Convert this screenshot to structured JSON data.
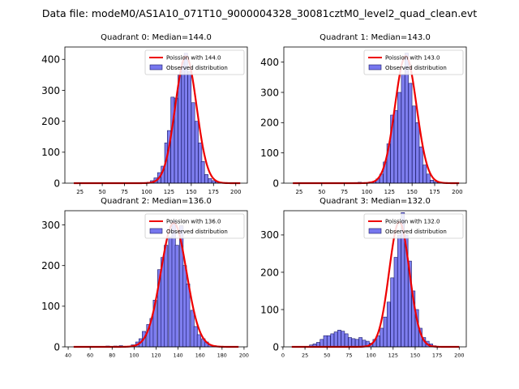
{
  "figure": {
    "suptitle": "Data file: modeM0/AS1A10_071T10_9000004328_30081cztM0_level2_quad_clean.evt"
  },
  "legend": {
    "poisson_color": "#ee0000",
    "hist_fill": "#7777ee",
    "hist_edge": "#1a1a66"
  },
  "chart_data": [
    {
      "type": "bar",
      "title": "Quadrant 0: Median=144.0",
      "legend_poisson": "Poission with 144.0",
      "legend_observed": "Observed distribution",
      "xlabel": "",
      "ylabel": "",
      "xlim": [
        8,
        213
      ],
      "ylim": [
        0,
        440
      ],
      "xticks": [
        25,
        50,
        75,
        100,
        125,
        150,
        175,
        200
      ],
      "yticks": [
        0,
        100,
        200,
        300,
        400
      ],
      "bin_width": 3.8,
      "poisson_mean": 144.0,
      "poisson_peak": 410,
      "curve_x": [
        18,
        205
      ],
      "bins_x": [
        90,
        95,
        99,
        102,
        106,
        110,
        114,
        118,
        122,
        125,
        129,
        133,
        137,
        141,
        144,
        148,
        152,
        156,
        160,
        163,
        167,
        171,
        175,
        179,
        182,
        186
      ],
      "bins_y": [
        1,
        2,
        1,
        3,
        8,
        17,
        34,
        55,
        130,
        170,
        278,
        275,
        350,
        390,
        420,
        360,
        260,
        200,
        130,
        70,
        28,
        15,
        8,
        4,
        2,
        1
      ]
    },
    {
      "type": "bar",
      "title": "Quadrant 1: Median=143.0",
      "legend_poisson": "Poission with 143.0",
      "legend_observed": "Observed distribution",
      "xlabel": "",
      "ylabel": "",
      "xlim": [
        8,
        210
      ],
      "ylim": [
        0,
        450
      ],
      "xticks": [
        25,
        50,
        75,
        100,
        125,
        150,
        175,
        200
      ],
      "yticks": [
        0,
        100,
        200,
        300,
        400
      ],
      "bin_width": 3.8,
      "poisson_mean": 143.0,
      "poisson_peak": 420,
      "curve_x": [
        18,
        202
      ],
      "bins_x": [
        88,
        92,
        96,
        100,
        104,
        108,
        112,
        116,
        120,
        124,
        128,
        132,
        136,
        140,
        144,
        148,
        152,
        156,
        160,
        164,
        168,
        172,
        176,
        180
      ],
      "bins_y": [
        2,
        3,
        2,
        1,
        4,
        6,
        14,
        30,
        70,
        130,
        225,
        240,
        300,
        360,
        430,
        330,
        255,
        200,
        120,
        60,
        30,
        10,
        5,
        2
      ]
    },
    {
      "type": "bar",
      "title": "Quadrant 2: Median=136.0",
      "legend_poisson": "Poission with 136.0",
      "legend_observed": "Observed distribution",
      "xlabel": "",
      "ylabel": "",
      "xlim": [
        37,
        203
      ],
      "ylim": [
        0,
        335
      ],
      "xticks": [
        40,
        60,
        80,
        100,
        120,
        140,
        160,
        180,
        200
      ],
      "yticks": [
        0,
        100,
        200,
        300
      ],
      "bin_width": 3.3,
      "poisson_mean": 136.0,
      "poisson_peak": 305,
      "curve_x": [
        45,
        195
      ],
      "bins_x": [
        76,
        83,
        88,
        94,
        99,
        103,
        106,
        109,
        113,
        116,
        119,
        123,
        126,
        129,
        133,
        136,
        139,
        143,
        146,
        149,
        153,
        156,
        159,
        163,
        166,
        169,
        173
      ],
      "bins_y": [
        2,
        2,
        3,
        1,
        5,
        12,
        20,
        38,
        55,
        70,
        115,
        190,
        220,
        250,
        270,
        310,
        250,
        298,
        200,
        155,
        90,
        50,
        30,
        20,
        12,
        5,
        3
      ]
    },
    {
      "type": "bar",
      "title": "Quadrant 3: Median=132.0",
      "legend_poisson": "Poission with 132.0",
      "legend_observed": "Observed distribution",
      "xlabel": "",
      "ylabel": "",
      "xlim": [
        1,
        208
      ],
      "ylim": [
        0,
        365
      ],
      "xticks": [
        0,
        25,
        50,
        75,
        100,
        125,
        150,
        175,
        200
      ],
      "yticks": [
        0,
        100,
        200,
        300
      ],
      "bin_width": 3.8,
      "poisson_mean": 132.0,
      "poisson_peak": 335,
      "curve_x": [
        10,
        200
      ],
      "bins_x": [
        32,
        36,
        40,
        44,
        48,
        52,
        56,
        60,
        64,
        68,
        72,
        76,
        80,
        84,
        88,
        92,
        96,
        100,
        104,
        108,
        112,
        116,
        120,
        124,
        128,
        132,
        136,
        140,
        144,
        148,
        152,
        156,
        160,
        164,
        168,
        172
      ],
      "bins_y": [
        5,
        8,
        12,
        20,
        30,
        30,
        35,
        40,
        45,
        42,
        35,
        25,
        22,
        20,
        25,
        18,
        15,
        10,
        20,
        30,
        50,
        80,
        120,
        185,
        240,
        300,
        360,
        300,
        230,
        150,
        100,
        50,
        25,
        15,
        8,
        3
      ]
    }
  ]
}
